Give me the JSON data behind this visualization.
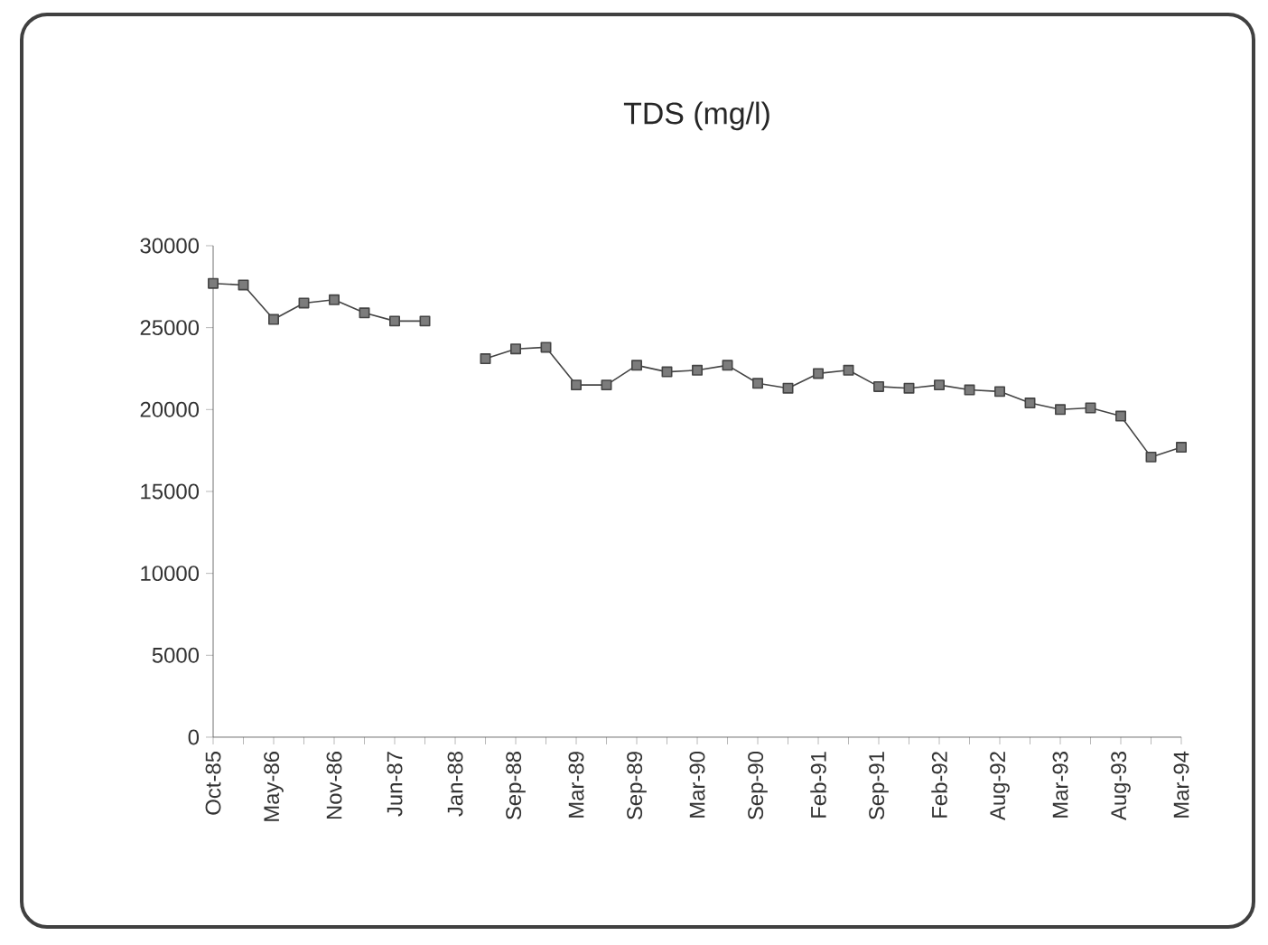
{
  "chart_data": {
    "type": "line",
    "title": "TDS (mg/l)",
    "categories": [
      "Oct-85",
      null,
      "May-86",
      null,
      "Nov-86",
      null,
      "Jun-87",
      null,
      "Jan-88",
      null,
      "Sep-88",
      null,
      "Mar-89",
      null,
      "Sep-89",
      null,
      "Mar-90",
      null,
      "Sep-90",
      null,
      "Feb-91",
      null,
      "Sep-91",
      null,
      "Feb-92",
      null,
      "Aug-92",
      null,
      "Mar-93",
      null,
      "Aug-93",
      null,
      "Mar-94"
    ],
    "series": [
      {
        "color": "#444444",
        "values": [
          27700,
          27600,
          25500,
          26500,
          26700,
          25900,
          25400,
          25400,
          null,
          23100,
          23700,
          23800,
          21500,
          21500,
          22700,
          22300,
          22400,
          22700,
          21600,
          21300,
          22200,
          22400,
          21400,
          21300,
          21500,
          21200,
          21100,
          20400,
          20000,
          20100,
          19600,
          17100,
          17700
        ]
      }
    ],
    "ylim": [
      0,
      30000
    ],
    "yticks": [
      0,
      5000,
      10000,
      15000,
      20000,
      25000,
      30000
    ],
    "marker": "square",
    "line_style": "solid"
  }
}
